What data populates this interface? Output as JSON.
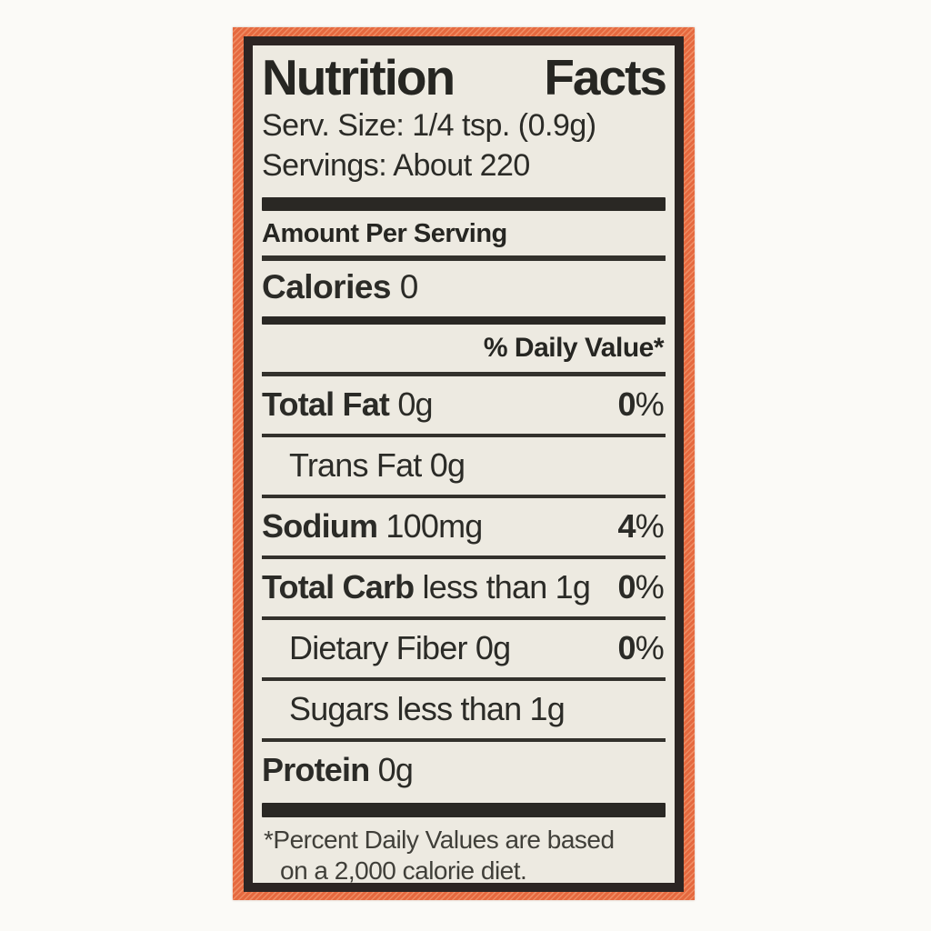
{
  "label": {
    "title": {
      "word1": "Nutrition",
      "word2": "Facts"
    },
    "serving_size": "Serv. Size: 1/4 tsp. (0.9g)",
    "servings": "Servings: About 220",
    "amount_per_serving": "Amount Per Serving",
    "calories": {
      "name": "Calories",
      "value": "0"
    },
    "daily_value_header": "% Daily Value*",
    "rows": {
      "total_fat": {
        "name": "Total Fat",
        "amount": "0g",
        "dv_num": "0",
        "dv_sign": "%"
      },
      "trans_fat": {
        "name": "Trans Fat",
        "amount": "0g"
      },
      "sodium": {
        "name": "Sodium",
        "amount": "100mg",
        "dv_num": "4",
        "dv_sign": "%"
      },
      "total_carb": {
        "name": "Total Carb",
        "amount": "less than 1g",
        "dv_num": "0",
        "dv_sign": "%"
      },
      "dietary_fiber": {
        "name": "Dietary Fiber",
        "amount": "0g",
        "dv_num": "0",
        "dv_sign": "%"
      },
      "sugars": {
        "name": "Sugars",
        "amount": "less than 1g"
      },
      "protein": {
        "name": "Protein",
        "amount": "0g"
      }
    },
    "footnote": {
      "line1": "*Percent  Daily Values are based",
      "line2": "on a 2,000 calorie diet."
    },
    "colors": {
      "border_orange": "#e5693f",
      "border_orange_light": "#ef8c63",
      "frame_black": "#2c2523",
      "panel_cream": "#edeae1",
      "text_black": "#262622"
    }
  }
}
